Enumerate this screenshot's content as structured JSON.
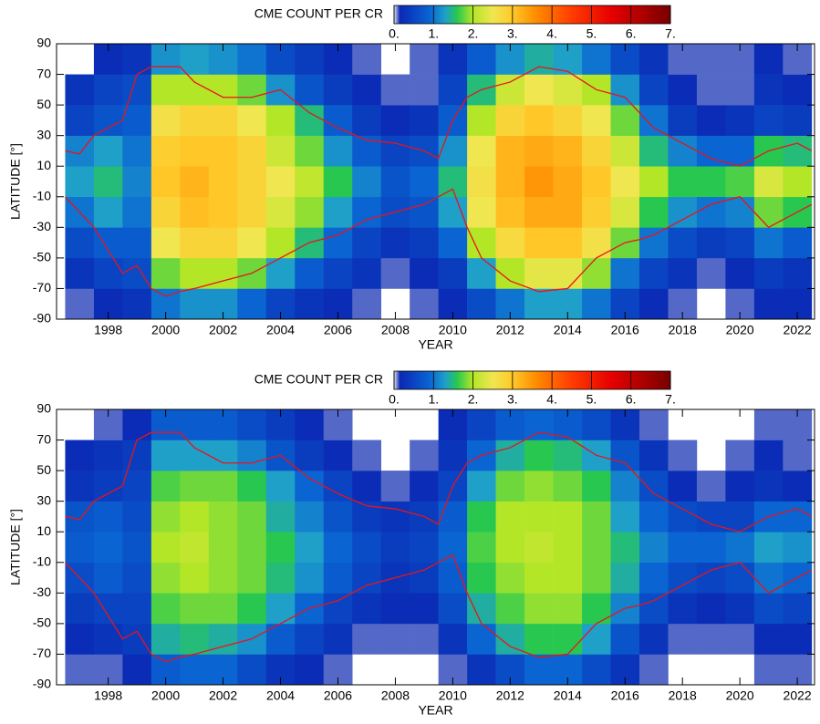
{
  "chart_data": [
    {
      "type": "heatmap",
      "title": "CME COUNT PER CR",
      "xlabel": "YEAR",
      "ylabel": "LATITUDE [°]",
      "xlim": [
        1996.2,
        2022.6
      ],
      "ylim": [
        -90,
        90
      ],
      "xticks": [
        1998,
        2000,
        2002,
        2004,
        2006,
        2008,
        2010,
        2012,
        2014,
        2016,
        2018,
        2020,
        2022
      ],
      "yticks": [
        -90,
        -70,
        -50,
        -30,
        -10,
        10,
        30,
        50,
        70,
        90
      ],
      "clim": [
        0,
        7
      ],
      "cticks": [
        {
          "value": 0,
          "label": "0."
        },
        {
          "value": 1,
          "label": "1."
        },
        {
          "value": 2,
          "label": "2."
        },
        {
          "value": 3,
          "label": "3."
        },
        {
          "value": 4,
          "label": "4."
        },
        {
          "value": 5,
          "label": "5."
        },
        {
          "value": 6,
          "label": "6."
        },
        {
          "value": 7,
          "label": "7."
        }
      ],
      "colorscale": [
        [
          0,
          "#e8e8f0"
        ],
        [
          0.15,
          "#0a28b4"
        ],
        [
          0.9,
          "#0a64d2"
        ],
        [
          1.3,
          "#1ea0c8"
        ],
        [
          1.6,
          "#28c850"
        ],
        [
          2,
          "#b4e628"
        ],
        [
          2.5,
          "#f0e650"
        ],
        [
          3,
          "#ffc828"
        ],
        [
          3.6,
          "#ff8c00"
        ],
        [
          4.5,
          "#ff3c00"
        ],
        [
          5.5,
          "#e60000"
        ],
        [
          7,
          "#780000"
        ]
      ],
      "xbins": [
        1996.5,
        1997.5,
        1998.5,
        1999.5,
        2000.5,
        2001.5,
        2002.5,
        2003.5,
        2004.5,
        2005.5,
        2006.5,
        2007.5,
        2008.5,
        2009.5,
        2010.5,
        2011.5,
        2012.5,
        2013.5,
        2014.5,
        2015.5,
        2016.5,
        2017.5,
        2018.5,
        2019.5,
        2020.5,
        2021.5,
        2022.5
      ],
      "ybins": [
        -90,
        -70,
        -50,
        -30,
        -10,
        10,
        30,
        50,
        70,
        90
      ],
      "z": [
        [
          0.1,
          0.2,
          0.3,
          1.0,
          1.2,
          1.2,
          0.9,
          0.5,
          0.3,
          0.2,
          0.1,
          null,
          0.1,
          0.2,
          0.6,
          1.0,
          1.3,
          1.3,
          1.0,
          0.5,
          0.2,
          0.1,
          null,
          0.1,
          0.2,
          0.2
        ],
        [
          0.3,
          0.5,
          0.6,
          1.8,
          2.0,
          2.0,
          1.8,
          1.3,
          0.8,
          0.5,
          0.3,
          0.1,
          0.2,
          0.4,
          1.3,
          2.0,
          2.4,
          2.4,
          1.9,
          1.0,
          0.5,
          0.3,
          0.1,
          0.2,
          0.4,
          0.3
        ],
        [
          0.6,
          0.8,
          0.8,
          2.5,
          2.8,
          2.8,
          2.5,
          2.0,
          1.5,
          0.9,
          0.5,
          0.3,
          0.4,
          0.9,
          2.0,
          2.7,
          3.0,
          3.0,
          2.6,
          1.8,
          1.0,
          0.6,
          0.4,
          0.5,
          1.0,
          0.8
        ],
        [
          1.0,
          1.3,
          1.0,
          2.8,
          3.1,
          3.0,
          2.8,
          2.3,
          1.9,
          1.3,
          0.9,
          0.6,
          0.7,
          1.3,
          2.5,
          3.1,
          3.3,
          3.3,
          2.9,
          2.3,
          1.6,
          1.2,
          1.0,
          1.1,
          1.8,
          1.6
        ],
        [
          1.3,
          1.5,
          1.1,
          3.0,
          3.2,
          3.0,
          2.8,
          2.5,
          2.1,
          1.6,
          1.1,
          0.7,
          0.9,
          1.5,
          2.6,
          3.2,
          3.5,
          3.3,
          3.0,
          2.5,
          2.0,
          1.6,
          1.6,
          1.7,
          2.3,
          2.0
        ],
        [
          1.1,
          1.3,
          1.0,
          2.9,
          3.0,
          3.0,
          2.8,
          2.2,
          1.8,
          1.2,
          0.8,
          0.5,
          0.6,
          1.2,
          2.5,
          3.2,
          3.3,
          3.2,
          2.8,
          2.2,
          1.5,
          1.1,
          0.9,
          0.9,
          1.6,
          1.5
        ],
        [
          0.5,
          0.7,
          0.8,
          2.6,
          2.8,
          2.8,
          2.5,
          2.0,
          1.5,
          0.8,
          0.4,
          0.2,
          0.3,
          0.8,
          2.0,
          2.8,
          3.0,
          2.8,
          2.5,
          1.8,
          1.0,
          0.4,
          0.2,
          0.3,
          0.5,
          0.4
        ],
        [
          0.3,
          0.5,
          0.6,
          2.0,
          2.0,
          2.0,
          1.8,
          1.2,
          0.7,
          0.4,
          0.2,
          0.1,
          0.1,
          0.5,
          1.5,
          2.2,
          2.5,
          2.3,
          2.0,
          1.2,
          0.5,
          0.2,
          0.1,
          0.1,
          0.3,
          0.2
        ],
        [
          null,
          0.2,
          0.3,
          1.2,
          1.3,
          1.2,
          1.0,
          0.6,
          0.4,
          0.2,
          0.1,
          null,
          0.1,
          0.3,
          0.8,
          1.2,
          1.4,
          1.3,
          1.0,
          0.6,
          0.3,
          0.1,
          0.1,
          0.1,
          0.2,
          0.1
        ]
      ],
      "x": [
        1996.5,
        1997,
        1997.5,
        1998,
        1998.5,
        1999,
        1999.5,
        2000,
        2000.5,
        2001,
        2002,
        2003,
        2004,
        2005,
        2006,
        2007,
        2008,
        2009,
        2009.5,
        2010,
        2010.5,
        2011,
        2012,
        2013,
        2014,
        2015,
        2016,
        2016.5,
        2017,
        2018,
        2019,
        2020,
        2021,
        2022,
        2022.5
      ],
      "series": [
        {
          "color": "#e8141c",
          "values": [
            20,
            18,
            30,
            35,
            40,
            70,
            75,
            75,
            75,
            65,
            55,
            55,
            60,
            45,
            35,
            27,
            25,
            20,
            15,
            40,
            55,
            60,
            65,
            75,
            72,
            60,
            55,
            45,
            35,
            25,
            15,
            10,
            20,
            25,
            20
          ]
        },
        {
          "color": "#e8141c",
          "values": [
            -10,
            -20,
            -30,
            -45,
            -60,
            -55,
            -70,
            -75,
            -72,
            -70,
            -65,
            -60,
            -50,
            -40,
            -35,
            -25,
            -20,
            -15,
            -10,
            -5,
            -30,
            -50,
            -65,
            -72,
            -70,
            -50,
            -40,
            -38,
            -35,
            -25,
            -15,
            -10,
            -30,
            -20,
            -15
          ]
        }
      ]
    },
    {
      "type": "heatmap",
      "title": "CME COUNT PER CR",
      "xlabel": "YEAR",
      "ylabel": "LATITUDE [°]",
      "xlim": [
        1996.2,
        2022.6
      ],
      "ylim": [
        -90,
        90
      ],
      "xticks": [
        1998,
        2000,
        2002,
        2004,
        2006,
        2008,
        2010,
        2012,
        2014,
        2016,
        2018,
        2020,
        2022
      ],
      "yticks": [
        -90,
        -70,
        -50,
        -30,
        -10,
        10,
        30,
        50,
        70,
        90
      ],
      "clim": [
        0,
        7
      ],
      "cticks": [
        {
          "value": 0,
          "label": "0."
        },
        {
          "value": 1,
          "label": "1."
        },
        {
          "value": 2,
          "label": "2."
        },
        {
          "value": 3,
          "label": "3."
        },
        {
          "value": 4,
          "label": "4."
        },
        {
          "value": 5,
          "label": "5."
        },
        {
          "value": 6,
          "label": "6."
        },
        {
          "value": 7,
          "label": "7."
        }
      ],
      "colorscale": [
        [
          0,
          "#e8e8f0"
        ],
        [
          0.15,
          "#0a28b4"
        ],
        [
          0.9,
          "#0a64d2"
        ],
        [
          1.3,
          "#1ea0c8"
        ],
        [
          1.6,
          "#28c850"
        ],
        [
          2,
          "#b4e628"
        ],
        [
          2.5,
          "#f0e650"
        ],
        [
          3,
          "#ffc828"
        ],
        [
          3.6,
          "#ff8c00"
        ],
        [
          4.5,
          "#ff3c00"
        ],
        [
          5.5,
          "#e60000"
        ],
        [
          7,
          "#780000"
        ]
      ],
      "xbins": [
        1996.5,
        1997.5,
        1998.5,
        1999.5,
        2000.5,
        2001.5,
        2002.5,
        2003.5,
        2004.5,
        2005.5,
        2006.5,
        2007.5,
        2008.5,
        2009.5,
        2010.5,
        2011.5,
        2012.5,
        2013.5,
        2014.5,
        2015.5,
        2016.5,
        2017.5,
        2018.5,
        2019.5,
        2020.5,
        2021.5,
        2022.5
      ],
      "ybins": [
        -90,
        -70,
        -50,
        -30,
        -10,
        10,
        30,
        50,
        70,
        90
      ],
      "z": [
        [
          0.1,
          0.1,
          0.2,
          0.8,
          0.9,
          0.9,
          0.6,
          0.3,
          0.2,
          0.1,
          null,
          null,
          null,
          0.1,
          0.3,
          0.6,
          0.9,
          0.9,
          0.6,
          0.3,
          0.1,
          null,
          null,
          null,
          0.1,
          0.1
        ],
        [
          0.2,
          0.3,
          0.4,
          1.4,
          1.5,
          1.4,
          1.2,
          0.8,
          0.5,
          0.3,
          0.1,
          0.1,
          0.1,
          0.3,
          0.9,
          1.4,
          1.6,
          1.6,
          1.3,
          0.7,
          0.3,
          0.1,
          0.1,
          0.1,
          0.2,
          0.2
        ],
        [
          0.4,
          0.5,
          0.5,
          1.7,
          1.8,
          1.8,
          1.6,
          1.3,
          0.9,
          0.5,
          0.3,
          0.2,
          0.2,
          0.6,
          1.4,
          1.7,
          1.9,
          1.9,
          1.6,
          1.1,
          0.6,
          0.3,
          0.2,
          0.3,
          0.6,
          0.5
        ],
        [
          0.6,
          0.8,
          0.6,
          1.9,
          2.0,
          1.9,
          1.8,
          1.5,
          1.2,
          0.8,
          0.5,
          0.3,
          0.4,
          0.8,
          1.6,
          1.9,
          2.0,
          2.0,
          1.8,
          1.4,
          0.9,
          0.6,
          0.5,
          0.6,
          1.0,
          0.9
        ],
        [
          0.8,
          0.9,
          0.7,
          2.0,
          2.1,
          1.9,
          1.8,
          1.6,
          1.3,
          0.9,
          0.6,
          0.4,
          0.5,
          0.9,
          1.7,
          2.0,
          2.1,
          2.0,
          1.8,
          1.5,
          1.1,
          0.9,
          0.9,
          1.0,
          1.3,
          1.2
        ],
        [
          0.7,
          0.8,
          0.6,
          1.9,
          2.0,
          1.9,
          1.8,
          1.4,
          1.1,
          0.7,
          0.4,
          0.3,
          0.4,
          0.8,
          1.6,
          2.0,
          2.0,
          2.0,
          1.8,
          1.3,
          0.9,
          0.6,
          0.5,
          0.5,
          0.9,
          0.9
        ],
        [
          0.3,
          0.4,
          0.5,
          1.7,
          1.8,
          1.8,
          1.6,
          1.3,
          0.9,
          0.5,
          0.2,
          0.1,
          0.2,
          0.5,
          1.3,
          1.8,
          1.9,
          1.8,
          1.6,
          1.1,
          0.6,
          0.2,
          0.1,
          0.2,
          0.3,
          0.2
        ],
        [
          0.2,
          0.3,
          0.4,
          1.3,
          1.3,
          1.3,
          1.1,
          0.7,
          0.4,
          0.2,
          0.1,
          null,
          0.1,
          0.3,
          0.9,
          1.4,
          1.6,
          1.5,
          1.3,
          0.7,
          0.3,
          0.1,
          null,
          0.1,
          0.2,
          0.1
        ],
        [
          null,
          0.1,
          0.2,
          0.8,
          0.8,
          0.8,
          0.6,
          0.4,
          0.2,
          0.1,
          null,
          null,
          null,
          0.2,
          0.5,
          0.8,
          0.9,
          0.8,
          0.6,
          0.3,
          0.1,
          null,
          null,
          null,
          0.1,
          0.1
        ]
      ],
      "x": [
        1996.5,
        1997,
        1997.5,
        1998,
        1998.5,
        1999,
        1999.5,
        2000,
        2000.5,
        2001,
        2002,
        2003,
        2004,
        2005,
        2006,
        2007,
        2008,
        2009,
        2009.5,
        2010,
        2010.5,
        2011,
        2012,
        2013,
        2014,
        2015,
        2016,
        2016.5,
        2017,
        2018,
        2019,
        2020,
        2021,
        2022,
        2022.5
      ],
      "series": [
        {
          "color": "#e8141c",
          "values": [
            20,
            18,
            30,
            35,
            40,
            70,
            75,
            75,
            75,
            65,
            55,
            55,
            60,
            45,
            35,
            27,
            25,
            20,
            15,
            40,
            55,
            60,
            65,
            75,
            72,
            60,
            55,
            45,
            35,
            25,
            15,
            10,
            20,
            25,
            20
          ]
        },
        {
          "color": "#e8141c",
          "values": [
            -10,
            -20,
            -30,
            -45,
            -60,
            -55,
            -70,
            -75,
            -72,
            -70,
            -65,
            -60,
            -50,
            -40,
            -35,
            -25,
            -20,
            -15,
            -10,
            -5,
            -30,
            -50,
            -65,
            -72,
            -70,
            -50,
            -40,
            -38,
            -35,
            -25,
            -15,
            -10,
            -30,
            -20,
            -15
          ]
        }
      ]
    }
  ]
}
